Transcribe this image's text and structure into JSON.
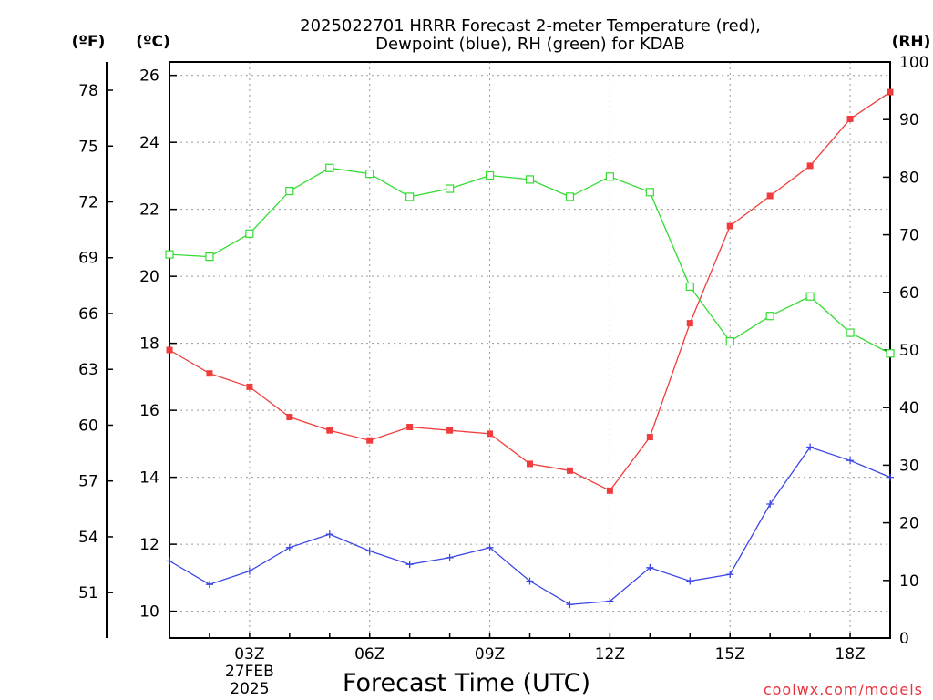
{
  "chart_data": {
    "type": "line",
    "title_line1": "2025022701 HRRR Forecast 2-meter Temperature (red),",
    "title_line2": "Dewpoint (blue), RH (green) for KDAB",
    "xlabel": "Forecast Time (UTC)",
    "credit": "coolwx.com/models",
    "axis_units": {
      "fahrenheit": "(ºF)",
      "celsius": "(ºC)",
      "rh": "(RH)"
    },
    "x_ticks": [
      {
        "x": 3,
        "label": "03Z",
        "sub1": "27FEB",
        "sub2": "2025"
      },
      {
        "x": 6,
        "label": "06Z"
      },
      {
        "x": 9,
        "label": "09Z"
      },
      {
        "x": 12,
        "label": "12Z"
      },
      {
        "x": 15,
        "label": "15Z"
      },
      {
        "x": 18,
        "label": "18Z"
      }
    ],
    "xlim": [
      1,
      19
    ],
    "ylim_celsius": [
      9.2,
      26.4
    ],
    "ylim_rh": [
      0,
      100
    ],
    "celsius_ticks": [
      10,
      12,
      14,
      16,
      18,
      20,
      22,
      24,
      26
    ],
    "fahrenheit_ticks": [
      51,
      54,
      57,
      60,
      63,
      66,
      69,
      72,
      75,
      78
    ],
    "rh_ticks": [
      0,
      10,
      20,
      30,
      40,
      50,
      60,
      70,
      80,
      90,
      100
    ],
    "grid": true,
    "x": [
      1,
      2,
      3,
      4,
      5,
      6,
      7,
      8,
      9,
      10,
      11,
      12,
      13,
      14,
      15,
      16,
      17,
      18,
      19
    ],
    "series": [
      {
        "key": "temperature",
        "unit": "C",
        "color": "#f03c3c",
        "marker": "filled-square",
        "values": [
          17.8,
          17.1,
          16.7,
          15.8,
          15.4,
          15.1,
          15.5,
          15.4,
          15.3,
          14.4,
          14.2,
          13.6,
          15.2,
          18.6,
          21.5,
          22.4,
          23.3,
          24.7,
          25.5
        ]
      },
      {
        "key": "dewpoint",
        "unit": "C",
        "color": "#3c46e6",
        "marker": "plus",
        "values": [
          11.5,
          10.8,
          11.2,
          11.9,
          12.3,
          11.8,
          11.4,
          11.6,
          11.9,
          10.9,
          10.2,
          10.3,
          11.3,
          10.9,
          11.1,
          13.2,
          14.9,
          14.5,
          14.0
        ]
      },
      {
        "key": "rh",
        "unit": "%",
        "color": "#32dc32",
        "marker": "open-square",
        "values": [
          66.6,
          66.2,
          70.2,
          77.6,
          81.6,
          80.6,
          76.6,
          78.0,
          80.3,
          79.6,
          76.6,
          80.1,
          77.4,
          61.0,
          51.5,
          55.9,
          59.3,
          53.0,
          49.4
        ]
      }
    ]
  }
}
